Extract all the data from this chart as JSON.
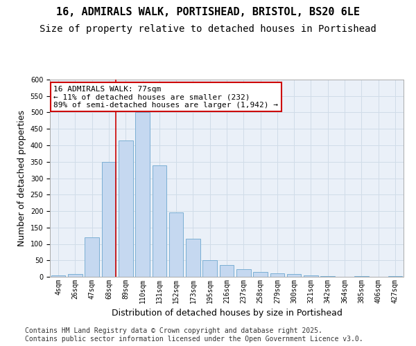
{
  "title_line1": "16, ADMIRALS WALK, PORTISHEAD, BRISTOL, BS20 6LE",
  "title_line2": "Size of property relative to detached houses in Portishead",
  "xlabel": "Distribution of detached houses by size in Portishead",
  "ylabel": "Number of detached properties",
  "categories": [
    "4sqm",
    "26sqm",
    "47sqm",
    "68sqm",
    "89sqm",
    "110sqm",
    "131sqm",
    "152sqm",
    "173sqm",
    "195sqm",
    "216sqm",
    "237sqm",
    "258sqm",
    "279sqm",
    "300sqm",
    "321sqm",
    "342sqm",
    "364sqm",
    "385sqm",
    "406sqm",
    "427sqm"
  ],
  "values": [
    5,
    8,
    120,
    350,
    415,
    500,
    340,
    195,
    115,
    50,
    35,
    24,
    15,
    10,
    8,
    5,
    3,
    1,
    2,
    1,
    2
  ],
  "bar_color": "#c5d8f0",
  "bar_edge_color": "#7bafd4",
  "grid_color": "#d0dce8",
  "background_color": "#eaf0f8",
  "annotation_text": "16 ADMIRALS WALK: 77sqm\n← 11% of detached houses are smaller (232)\n89% of semi-detached houses are larger (1,942) →",
  "annotation_box_color": "#ffffff",
  "annotation_box_edge": "#cc0000",
  "vline_x_index": 3,
  "vline_color": "#cc0000",
  "ylim": [
    0,
    600
  ],
  "yticks": [
    0,
    50,
    100,
    150,
    200,
    250,
    300,
    350,
    400,
    450,
    500,
    550,
    600
  ],
  "footer_text": "Contains HM Land Registry data © Crown copyright and database right 2025.\nContains public sector information licensed under the Open Government Licence v3.0.",
  "title_fontsize": 11,
  "subtitle_fontsize": 10,
  "axis_label_fontsize": 9,
  "tick_fontsize": 7,
  "annotation_fontsize": 8,
  "footer_fontsize": 7
}
